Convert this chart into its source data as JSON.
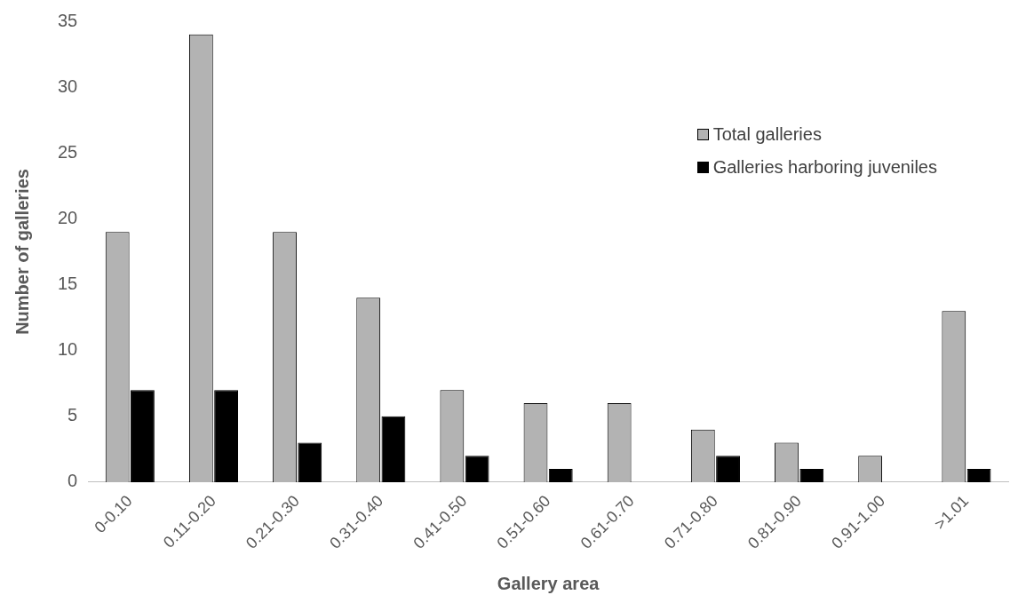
{
  "chart_data": {
    "type": "bar",
    "xlabel": "Gallery area",
    "ylabel": "Number of galleries",
    "categories": [
      "0-0.10",
      "0.11-0.20",
      "0.21-0.30",
      "0.31-0.40",
      "0.41-0.50",
      "0.51-0.60",
      "0.61-0.70",
      "0.71-0.80",
      "0.81-0.90",
      "0.91-1.00",
      ">1.01"
    ],
    "series": [
      {
        "name": "Total galleries",
        "color": "#b3b3b3",
        "values": [
          19,
          34,
          19,
          14,
          7,
          6,
          6,
          4,
          3,
          2,
          13
        ]
      },
      {
        "name": "Galleries harboring juveniles",
        "color": "#000000",
        "values": [
          7,
          7,
          3,
          5,
          2,
          1,
          0,
          2,
          1,
          0,
          1
        ]
      }
    ],
    "ylim": [
      0,
      35
    ],
    "yticks": [
      0,
      5,
      10,
      15,
      20,
      25,
      30,
      35
    ],
    "grid": false,
    "legend": "top right"
  }
}
